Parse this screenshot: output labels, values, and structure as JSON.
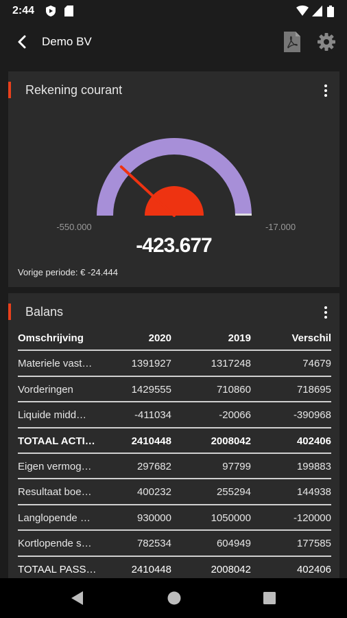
{
  "status_bar": {
    "time": "2:44"
  },
  "app_bar": {
    "title": "Demo BV"
  },
  "rekening_courant": {
    "title": "Rekening courant",
    "gauge": {
      "min": "-550.000",
      "max": "-17.000",
      "value": "-423.677",
      "fraction": 0.237
    },
    "previous_period": "Vorige periode: € -24.444",
    "colors": {
      "track": "#a78fd8",
      "needle": "#ee3311",
      "accent": "#e8401c"
    }
  },
  "balans": {
    "title": "Balans",
    "headers": [
      "Omschrijving",
      "2020",
      "2019",
      "Verschil"
    ],
    "rows": [
      {
        "label": "Materiele vast…",
        "v2020": "1391927",
        "v2019": "1317248",
        "diff": "74679"
      },
      {
        "label": "Vorderingen",
        "v2020": "1429555",
        "v2019": "710860",
        "diff": "718695"
      },
      {
        "label": "Liquide midd…",
        "v2020": "-411034",
        "v2019": "-20066",
        "diff": "-390968"
      },
      {
        "label": "TOTAAL ACTI…",
        "v2020": "2410448",
        "v2019": "2008042",
        "diff": "402406"
      },
      {
        "label": "Eigen vermog…",
        "v2020": "297682",
        "v2019": "97799",
        "diff": "199883"
      },
      {
        "label": "Resultaat boe…",
        "v2020": "400232",
        "v2019": "255294",
        "diff": "144938"
      },
      {
        "label": "Langlopende …",
        "v2020": "930000",
        "v2019": "1050000",
        "diff": "-120000"
      },
      {
        "label": "Kortlopende s…",
        "v2020": "782534",
        "v2019": "604949",
        "diff": "177585"
      },
      {
        "label": "TOTAAL PASS…",
        "v2020": "2410448",
        "v2019": "2008042",
        "diff": "402406"
      }
    ]
  },
  "icons": [
    "sim-card-icon",
    "play-protect-icon",
    "wifi-icon",
    "signal-icon",
    "battery-icon",
    "back-arrow-icon",
    "pdf-icon",
    "gear-icon",
    "more-vert-icon",
    "nav-back-icon",
    "nav-home-icon",
    "nav-recents-icon"
  ]
}
